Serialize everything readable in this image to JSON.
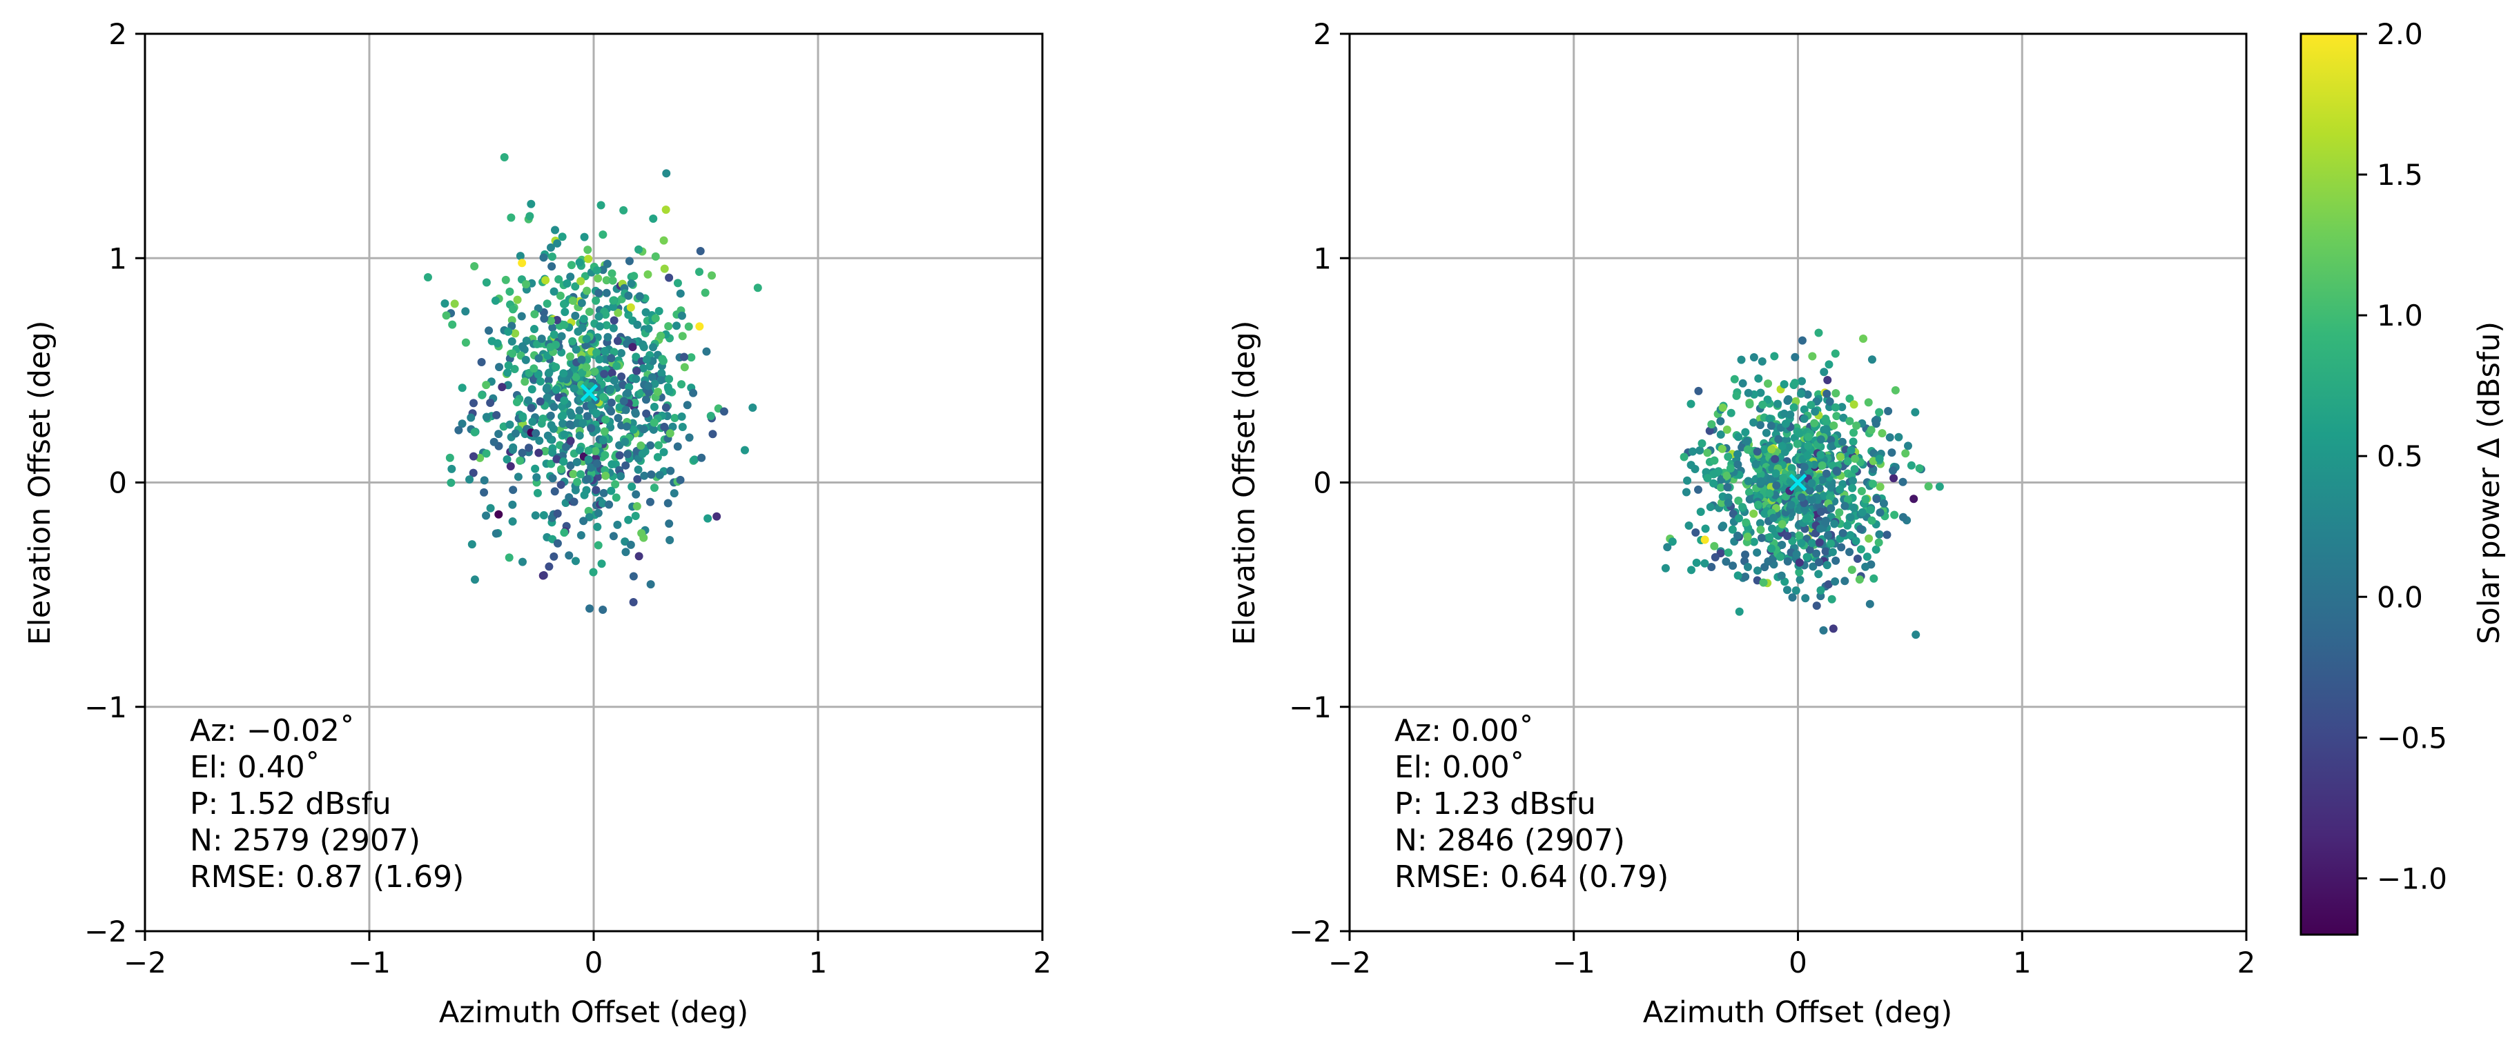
{
  "chart_data": [
    {
      "type": "scatter",
      "xlabel": "Azimuth Offset (deg)",
      "ylabel": "Elevation Offset (deg)",
      "xlim": [
        -2,
        2
      ],
      "ylim": [
        -2,
        2
      ],
      "xticks": [
        -2,
        -1,
        0,
        1,
        2
      ],
      "yticks": [
        -2,
        -1,
        0,
        1,
        2
      ],
      "xtick_labels": [
        "−2",
        "−1",
        "0",
        "1",
        "2"
      ],
      "ytick_labels": [
        "−2",
        "−1",
        "0",
        "1",
        "2"
      ],
      "grid": true,
      "center": {
        "az": -0.02,
        "el": 0.4,
        "marker": "x",
        "color": "#00e5ee"
      },
      "cloud": {
        "mean_az": -0.02,
        "mean_el": 0.4,
        "sd_az": 0.25,
        "sd_el": 0.35,
        "mean_power_delta": 0.45,
        "points_drawn": 900
      },
      "stats": [
        "Az: −0.02˚",
        "El:   0.40˚",
        "P:    1.52 dBsfu",
        "N:   2579 (2907)",
        "RMSE: 0.87 (1.69)"
      ]
    },
    {
      "type": "scatter",
      "xlabel": "Azimuth Offset (deg)",
      "ylabel": "Elevation Offset (deg)",
      "xlim": [
        -2,
        2
      ],
      "ylim": [
        -2,
        2
      ],
      "xticks": [
        -2,
        -1,
        0,
        1,
        2
      ],
      "yticks": [
        -2,
        -1,
        0,
        1,
        2
      ],
      "xtick_labels": [
        "−2",
        "−1",
        "0",
        "1",
        "2"
      ],
      "ytick_labels": [
        "−2",
        "−1",
        "0",
        "1",
        "2"
      ],
      "grid": true,
      "center": {
        "az": 0.0,
        "el": 0.0,
        "marker": "x",
        "color": "#00e5ee"
      },
      "cloud": {
        "mean_az": 0.0,
        "mean_el": 0.0,
        "sd_az": 0.22,
        "sd_el": 0.22,
        "mean_power_delta": 0.45,
        "points_drawn": 900
      },
      "stats": [
        "Az:  0.00˚",
        "El:   0.00˚",
        "P:    1.23 dBsfu",
        "N:   2846 (2907)",
        "RMSE: 0.64 (0.79)"
      ]
    }
  ],
  "colorbar": {
    "label": "Solar power Δ (dBsfu)",
    "colormap": "viridis",
    "range": [
      -1.2,
      2.0
    ],
    "ticks": [
      -1.0,
      -0.5,
      0.0,
      0.5,
      1.0,
      1.5,
      2.0
    ],
    "tick_labels": [
      "−1.0",
      "−0.5",
      "0.0",
      "0.5",
      "1.0",
      "1.5",
      "2.0"
    ],
    "stops": [
      "#440154",
      "#482878",
      "#3e4989",
      "#31688e",
      "#26828e",
      "#1f9e89",
      "#35b779",
      "#6ece58",
      "#b5de2b",
      "#fde725"
    ]
  }
}
